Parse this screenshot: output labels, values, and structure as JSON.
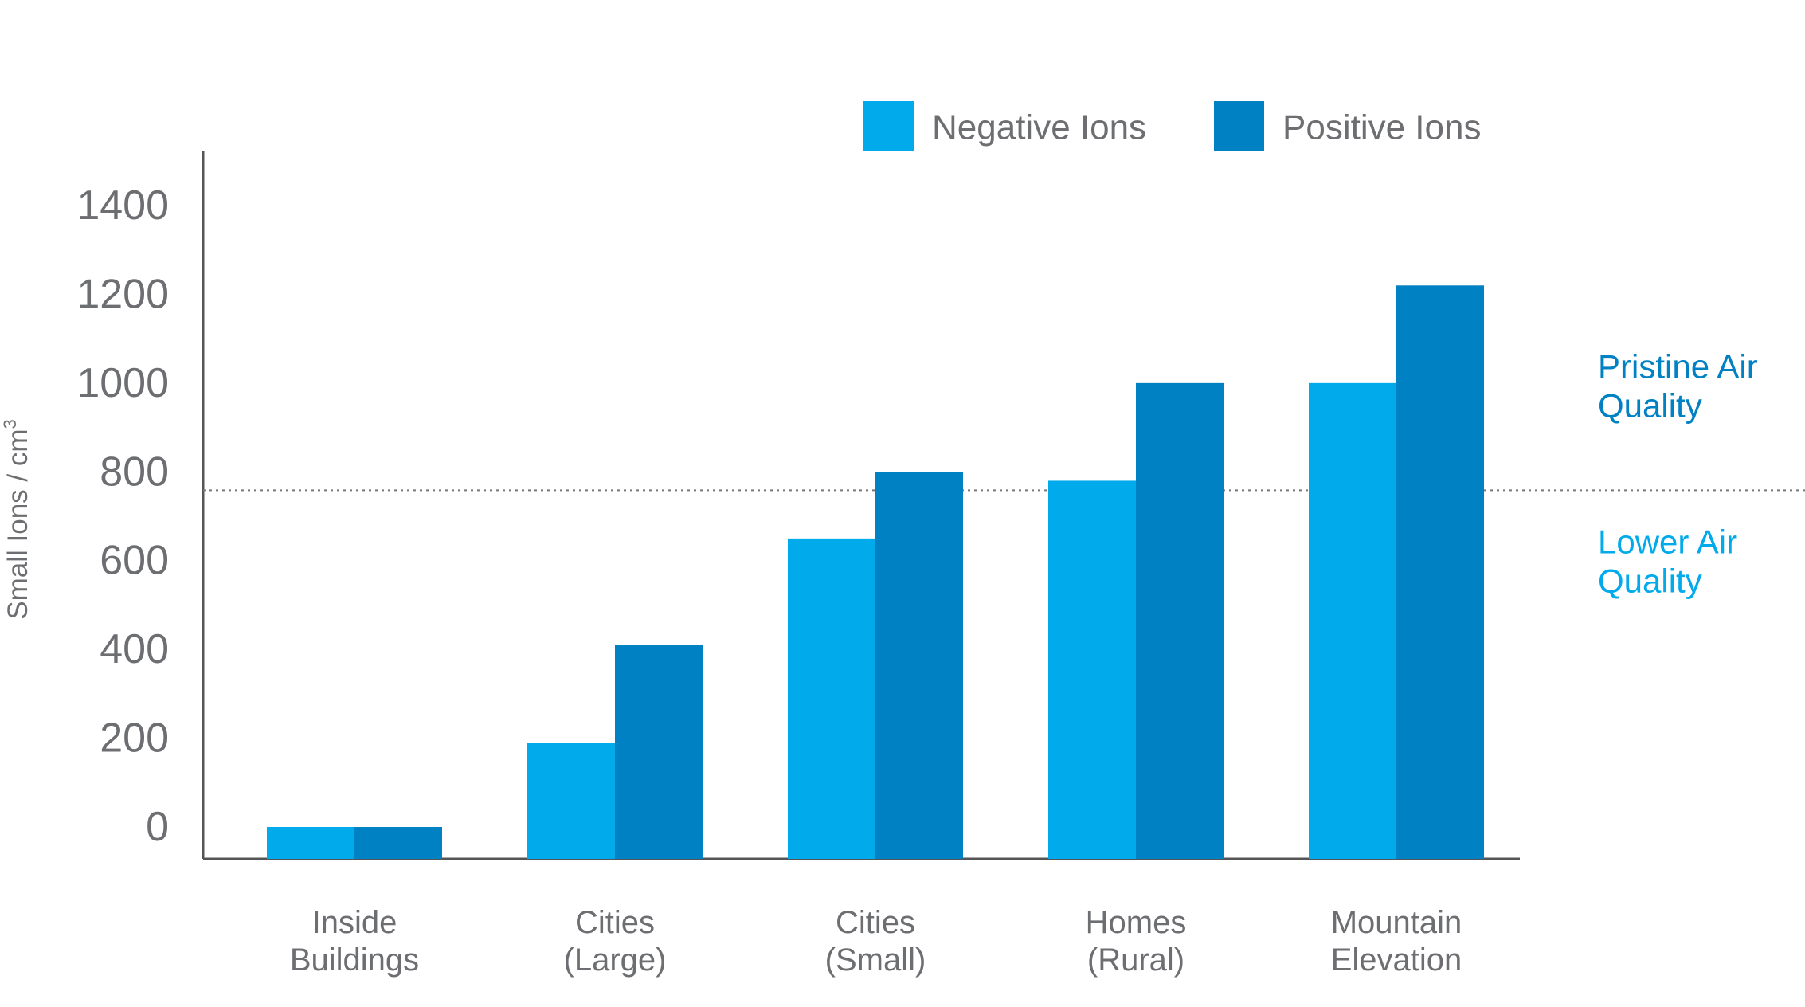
{
  "chart_data": {
    "type": "bar",
    "title": "",
    "categories": [
      [
        "Inside",
        "Buildings"
      ],
      [
        "Cities",
        "(Large)"
      ],
      [
        "Cities",
        "(Small)"
      ],
      [
        "Homes",
        "(Rural)"
      ],
      [
        "Mountain",
        "Elevation"
      ]
    ],
    "series": [
      {
        "name": "Negative Ions",
        "color": "#00aaeb",
        "values": [
          0,
          190,
          650,
          780,
          1000
        ]
      },
      {
        "name": "Positive Ions",
        "color": "#0081c3",
        "values": [
          0,
          410,
          800,
          1000,
          1220
        ]
      }
    ],
    "ylabel": "Small Ions / cm",
    "ylabel_superscript": "3",
    "yticks": [
      0,
      200,
      400,
      600,
      800,
      1000,
      1200,
      1400
    ],
    "ylim": [
      0,
      1400
    ],
    "reference_line": {
      "value": 780,
      "style": "dotted"
    },
    "annotations": [
      {
        "lines": [
          "Pristine Air",
          "Quality"
        ],
        "color": "#0081c3",
        "position": "above-line"
      },
      {
        "lines": [
          "Lower Air",
          "Quality"
        ],
        "color": "#00aaeb",
        "position": "below-line"
      }
    ],
    "legend": "top-right",
    "grid": false
  }
}
